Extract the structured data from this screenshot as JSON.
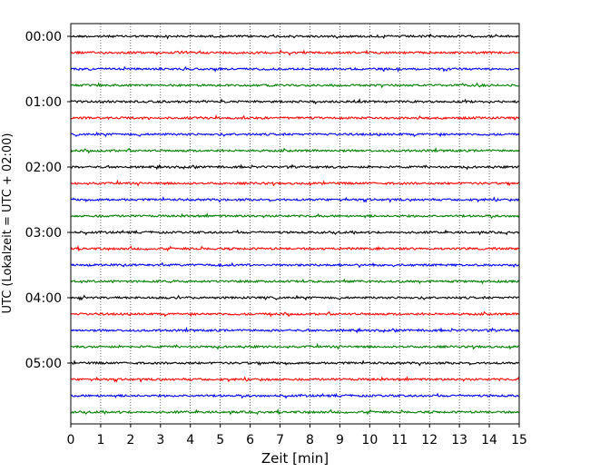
{
  "chart_data": {
    "type": "line",
    "title": "",
    "xlabel": "Zeit  [min]",
    "ylabel": "UTC (Lokalzeit = UTC + 02:00)",
    "xlim": [
      0,
      15
    ],
    "x_ticks": [
      0,
      1,
      2,
      3,
      4,
      5,
      6,
      7,
      8,
      9,
      10,
      11,
      12,
      13,
      14,
      15
    ],
    "grid": "vertical dotted at each minute",
    "y_tick_labels": [
      "00:00",
      "01:00",
      "02:00",
      "03:00",
      "04:00",
      "05:00"
    ],
    "trace_interval_minutes": 15,
    "trace_count": 24,
    "trace_colors": [
      "#000000",
      "#ff0000",
      "#0000ff",
      "#008000"
    ],
    "series_description": "Helicorder-style seismogram: each row is a 15-minute trace of near-flat noise starting at 00:00, 00:15, 00:30, ... 05:45 UTC; row colors cycle black, red, blue, green."
  }
}
